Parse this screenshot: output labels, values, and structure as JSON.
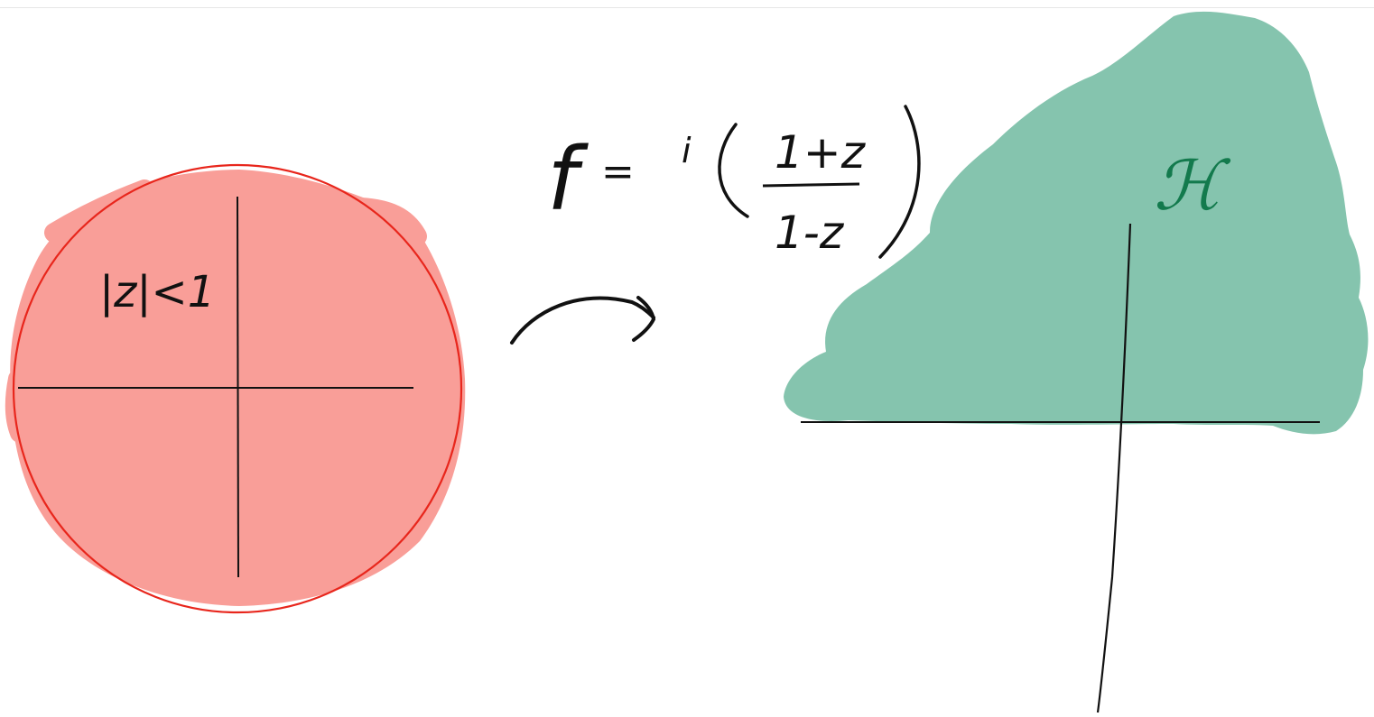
{
  "disk_label": "|z|<1",
  "map_formula": {
    "lhs": "f",
    "equals": "=",
    "factor": "i",
    "numerator": "1+z",
    "denominator": "1-z"
  },
  "halfplane_label": "ℋ",
  "colors": {
    "disk_fill": "#f99e98",
    "disk_outline": "#e8261c",
    "halfplane_fill": "#85c4ae",
    "halfplane_label": "#137a4d",
    "ink": "#111111"
  }
}
